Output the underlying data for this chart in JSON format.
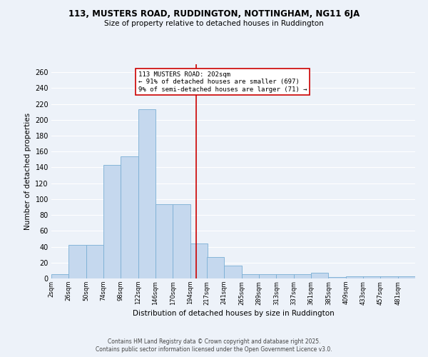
{
  "title_line1": "113, MUSTERS ROAD, RUDDINGTON, NOTTINGHAM, NG11 6JA",
  "title_line2": "Size of property relative to detached houses in Ruddington",
  "xlabel": "Distribution of detached houses by size in Ruddington",
  "ylabel": "Number of detached properties",
  "bar_color": "#c5d8ee",
  "bar_edge_color": "#7aafd4",
  "background_color": "#edf2f9",
  "grid_color": "#ffffff",
  "subject_line_color": "#cc0000",
  "subject_value": 202,
  "annotation_title": "113 MUSTERS ROAD: 202sqm",
  "annotation_line1": "← 91% of detached houses are smaller (697)",
  "annotation_line2": "9% of semi-detached houses are larger (71) →",
  "bin_starts": [
    2,
    26,
    50,
    74,
    98,
    122,
    146,
    170,
    194,
    217,
    241,
    265,
    289,
    313,
    337,
    361,
    385,
    409,
    433,
    457,
    481
  ],
  "bin_width": 24,
  "categories": [
    "2sqm",
    "26sqm",
    "50sqm",
    "74sqm",
    "98sqm",
    "122sqm",
    "146sqm",
    "170sqm",
    "194sqm",
    "217sqm",
    "241sqm",
    "265sqm",
    "289sqm",
    "313sqm",
    "337sqm",
    "361sqm",
    "385sqm",
    "409sqm",
    "433sqm",
    "457sqm",
    "481sqm"
  ],
  "values": [
    5,
    42,
    42,
    143,
    154,
    213,
    94,
    94,
    44,
    27,
    16,
    5,
    5,
    5,
    5,
    7,
    2,
    3,
    3,
    3,
    3
  ],
  "ylim": [
    0,
    270
  ],
  "yticks": [
    0,
    20,
    40,
    60,
    80,
    100,
    120,
    140,
    160,
    180,
    200,
    220,
    240,
    260
  ],
  "footer_line1": "Contains HM Land Registry data © Crown copyright and database right 2025.",
  "footer_line2": "Contains public sector information licensed under the Open Government Licence v3.0."
}
